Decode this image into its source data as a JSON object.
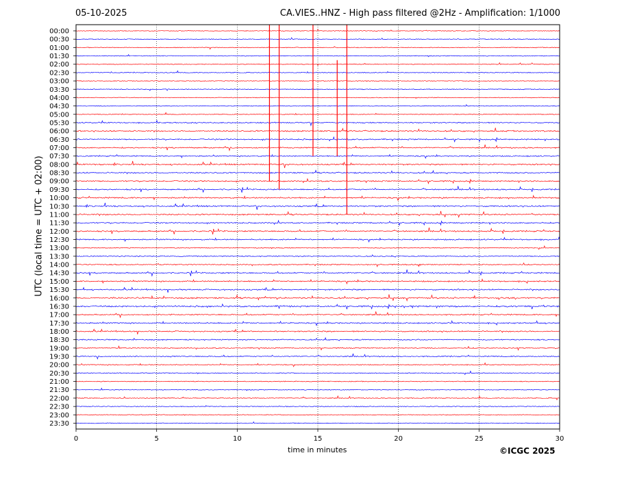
{
  "header": {
    "date": "05-10-2025",
    "title": "CA.VIES..HNZ - High pass filtered @2Hz - Amplification: 1/1000"
  },
  "footer": {
    "copyright": "©ICGC 2025"
  },
  "chart_data": {
    "type": "line",
    "title": "CA.VIES..HNZ - High pass filtered @2Hz - Amplification: 1/1000",
    "xlabel": "time in minutes",
    "ylabel": "UTC (local time = UTC + 02:00)",
    "xlim": [
      0,
      30
    ],
    "x_ticks": [
      0,
      5,
      10,
      15,
      20,
      25,
      30
    ],
    "grid_x": [
      5,
      10,
      15,
      20,
      25
    ],
    "grid_style": "dotted vertical",
    "row_labels": [
      "00:00",
      "00:30",
      "01:00",
      "01:30",
      "02:00",
      "02:30",
      "03:00",
      "03:30",
      "04:00",
      "04:30",
      "05:00",
      "05:30",
      "06:00",
      "06:30",
      "07:00",
      "07:30",
      "08:00",
      "08:30",
      "09:00",
      "09:30",
      "10:00",
      "10:30",
      "11:00",
      "11:30",
      "12:00",
      "12:30",
      "13:00",
      "13:30",
      "14:00",
      "14:30",
      "15:00",
      "15:30",
      "16:00",
      "16:30",
      "17:00",
      "17:30",
      "18:00",
      "18:30",
      "19:00",
      "19:30",
      "20:00",
      "20:30",
      "21:00",
      "21:30",
      "22:00",
      "22:30",
      "23:00",
      "23:30"
    ],
    "trace_colors": [
      "#ff0000",
      "#0000ff"
    ],
    "color_rule": "alternating rows starting red",
    "activity": [
      0.08,
      0.08,
      0.1,
      0.1,
      0.1,
      0.12,
      0.06,
      0.15,
      0.1,
      0.06,
      0.12,
      0.4,
      0.55,
      0.5,
      0.45,
      0.4,
      0.6,
      0.5,
      0.5,
      0.5,
      0.55,
      0.6,
      0.6,
      0.5,
      0.55,
      0.45,
      0.2,
      0.3,
      0.35,
      0.5,
      0.5,
      0.5,
      0.65,
      0.7,
      0.45,
      0.5,
      0.5,
      0.4,
      0.3,
      0.35,
      0.25,
      0.2,
      0.15,
      0.1,
      0.2,
      0.15,
      0.05,
      0.05
    ],
    "large_spikes": [
      {
        "row_start": 0,
        "row_end": 18,
        "x": 12.0
      },
      {
        "row_start": 0,
        "row_end": 19,
        "x": 12.6
      },
      {
        "row_start": 0,
        "row_end": 15,
        "x": 14.7
      },
      {
        "row_start": 4,
        "row_end": 15,
        "x": 16.2
      },
      {
        "row_start": 0,
        "row_end": 22,
        "x": 16.8
      }
    ]
  }
}
